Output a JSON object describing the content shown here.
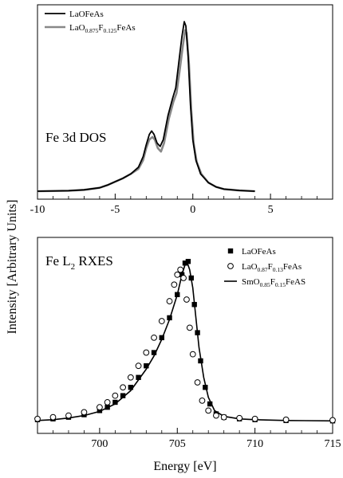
{
  "chart_data": [
    {
      "type": "line",
      "panel_label": "Fe 3d DOS",
      "xlim": [
        -10,
        9
      ],
      "ylim": [
        0,
        1.0
      ],
      "xticks": [
        -10,
        -5,
        0,
        5
      ],
      "legend_position": "top-left",
      "series": [
        {
          "name": "LaOFeAs",
          "color": "#000000",
          "points": [
            [
              -10,
              0
            ],
            [
              -8,
              0.003
            ],
            [
              -7,
              0.008
            ],
            [
              -6,
              0.02
            ],
            [
              -5.5,
              0.035
            ],
            [
              -5,
              0.055
            ],
            [
              -4.5,
              0.075
            ],
            [
              -4,
              0.1
            ],
            [
              -3.5,
              0.14
            ],
            [
              -3.2,
              0.2
            ],
            [
              -3,
              0.27
            ],
            [
              -2.8,
              0.33
            ],
            [
              -2.65,
              0.35
            ],
            [
              -2.5,
              0.33
            ],
            [
              -2.3,
              0.28
            ],
            [
              -2.1,
              0.26
            ],
            [
              -1.9,
              0.3
            ],
            [
              -1.6,
              0.44
            ],
            [
              -1.3,
              0.54
            ],
            [
              -1.1,
              0.6
            ],
            [
              -0.9,
              0.75
            ],
            [
              -0.7,
              0.9
            ],
            [
              -0.55,
              0.985
            ],
            [
              -0.45,
              0.96
            ],
            [
              -0.3,
              0.78
            ],
            [
              -0.15,
              0.5
            ],
            [
              0,
              0.3
            ],
            [
              0.2,
              0.18
            ],
            [
              0.5,
              0.1
            ],
            [
              1,
              0.05
            ],
            [
              1.5,
              0.025
            ],
            [
              2,
              0.012
            ],
            [
              3,
              0.004
            ],
            [
              4,
              0
            ]
          ]
        },
        {
          "name": "LaO0.875F0.125FeAs",
          "color": "#888888",
          "points": [
            [
              -10,
              0
            ],
            [
              -8,
              0.003
            ],
            [
              -7,
              0.008
            ],
            [
              -6,
              0.02
            ],
            [
              -5.5,
              0.035
            ],
            [
              -5,
              0.055
            ],
            [
              -4.5,
              0.075
            ],
            [
              -4,
              0.1
            ],
            [
              -3.5,
              0.13
            ],
            [
              -3.2,
              0.18
            ],
            [
              -3,
              0.25
            ],
            [
              -2.8,
              0.3
            ],
            [
              -2.6,
              0.315
            ],
            [
              -2.45,
              0.3
            ],
            [
              -2.25,
              0.25
            ],
            [
              -2.05,
              0.23
            ],
            [
              -1.85,
              0.28
            ],
            [
              -1.55,
              0.42
            ],
            [
              -1.25,
              0.52
            ],
            [
              -1.05,
              0.57
            ],
            [
              -0.85,
              0.7
            ],
            [
              -0.65,
              0.84
            ],
            [
              -0.5,
              0.935
            ],
            [
              -0.4,
              0.92
            ],
            [
              -0.25,
              0.74
            ],
            [
              -0.1,
              0.47
            ],
            [
              0.05,
              0.28
            ],
            [
              0.25,
              0.17
            ],
            [
              0.55,
              0.1
            ],
            [
              1,
              0.05
            ],
            [
              1.5,
              0.025
            ],
            [
              2,
              0.012
            ],
            [
              3,
              0.004
            ],
            [
              4,
              0
            ]
          ]
        }
      ],
      "legend": [
        {
          "parts": [
            {
              "text": "LaOFeAs",
              "sub": false
            }
          ]
        },
        {
          "parts": [
            {
              "text": "LaO",
              "sub": false
            },
            {
              "text": "0.875",
              "sub": true
            },
            {
              "text": "F",
              "sub": false
            },
            {
              "text": "0.125",
              "sub": true
            },
            {
              "text": "FeAs",
              "sub": false
            }
          ]
        }
      ]
    },
    {
      "type": "scatter",
      "panel_label_main": "Fe L",
      "panel_label_sub": "2",
      "panel_label_tail": " RXES",
      "xlim": [
        696,
        715
      ],
      "ylim": [
        0,
        1.0
      ],
      "xticks": [
        700,
        705,
        710,
        715
      ],
      "xlabel": "Energy [eV]",
      "legend_position": "top-right",
      "series": [
        {
          "name": "LaOFeAs",
          "marker": "filled-square",
          "points": [
            [
              696,
              0.025
            ],
            [
              697,
              0.03
            ],
            [
              698,
              0.04
            ],
            [
              699,
              0.055
            ],
            [
              700,
              0.08
            ],
            [
              700.5,
              0.1
            ],
            [
              701,
              0.13
            ],
            [
              701.5,
              0.17
            ],
            [
              702,
              0.22
            ],
            [
              702.5,
              0.28
            ],
            [
              703,
              0.35
            ],
            [
              703.5,
              0.43
            ],
            [
              704,
              0.52
            ],
            [
              704.5,
              0.64
            ],
            [
              705,
              0.78
            ],
            [
              705.3,
              0.9
            ],
            [
              705.5,
              0.97
            ],
            [
              705.7,
              0.98
            ],
            [
              705.9,
              0.88
            ],
            [
              706.1,
              0.72
            ],
            [
              706.3,
              0.55
            ],
            [
              706.5,
              0.38
            ],
            [
              706.8,
              0.22
            ],
            [
              707.1,
              0.12
            ],
            [
              707.5,
              0.06
            ],
            [
              708,
              0.04
            ],
            [
              709,
              0.03
            ],
            [
              710,
              0.025
            ],
            [
              712,
              0.02
            ],
            [
              715,
              0.018
            ]
          ]
        },
        {
          "name": "LaO0.87F0.13FeAs",
          "marker": "open-circle",
          "points": [
            [
              696,
              0.03
            ],
            [
              697,
              0.04
            ],
            [
              698,
              0.05
            ],
            [
              699,
              0.07
            ],
            [
              700,
              0.1
            ],
            [
              700.5,
              0.13
            ],
            [
              701,
              0.17
            ],
            [
              701.5,
              0.22
            ],
            [
              702,
              0.28
            ],
            [
              702.5,
              0.35
            ],
            [
              703,
              0.43
            ],
            [
              703.5,
              0.52
            ],
            [
              704,
              0.62
            ],
            [
              704.5,
              0.74
            ],
            [
              704.8,
              0.84
            ],
            [
              705,
              0.9
            ],
            [
              705.2,
              0.93
            ],
            [
              705.4,
              0.88
            ],
            [
              705.6,
              0.75
            ],
            [
              705.8,
              0.58
            ],
            [
              706,
              0.42
            ],
            [
              706.3,
              0.25
            ],
            [
              706.6,
              0.14
            ],
            [
              707,
              0.08
            ],
            [
              707.5,
              0.05
            ],
            [
              708,
              0.04
            ],
            [
              709,
              0.035
            ],
            [
              710,
              0.03
            ],
            [
              712,
              0.025
            ],
            [
              715,
              0.022
            ]
          ]
        },
        {
          "name": "SmO0.85F0.15FeAS",
          "marker": "line",
          "points": [
            [
              696,
              0.02
            ],
            [
              697,
              0.025
            ],
            [
              698,
              0.035
            ],
            [
              699,
              0.05
            ],
            [
              700,
              0.075
            ],
            [
              701,
              0.12
            ],
            [
              702,
              0.2
            ],
            [
              703,
              0.33
            ],
            [
              703.5,
              0.41
            ],
            [
              704,
              0.51
            ],
            [
              704.5,
              0.63
            ],
            [
              705,
              0.78
            ],
            [
              705.3,
              0.9
            ],
            [
              705.5,
              0.96
            ],
            [
              705.65,
              0.97
            ],
            [
              705.8,
              0.93
            ],
            [
              706,
              0.82
            ],
            [
              706.2,
              0.64
            ],
            [
              706.4,
              0.46
            ],
            [
              706.7,
              0.28
            ],
            [
              707,
              0.16
            ],
            [
              707.4,
              0.08
            ],
            [
              708,
              0.045
            ],
            [
              709,
              0.03
            ],
            [
              710,
              0.025
            ],
            [
              712,
              0.02
            ],
            [
              715,
              0.018
            ]
          ]
        }
      ],
      "legend": [
        {
          "marker": "filled-square",
          "parts": [
            {
              "text": "LaOFeAs",
              "sub": false
            }
          ]
        },
        {
          "marker": "open-circle",
          "parts": [
            {
              "text": "LaO",
              "sub": false
            },
            {
              "text": "0.87",
              "sub": true
            },
            {
              "text": "F",
              "sub": false
            },
            {
              "text": "0.13",
              "sub": true
            },
            {
              "text": "FeAs",
              "sub": false
            }
          ]
        },
        {
          "marker": "line",
          "parts": [
            {
              "text": "SmO",
              "sub": false
            },
            {
              "text": "0.85",
              "sub": true
            },
            {
              "text": "F",
              "sub": false
            },
            {
              "text": "0.15",
              "sub": true
            },
            {
              "text": "FeAS",
              "sub": false
            }
          ]
        }
      ]
    }
  ],
  "ylabel": "Intensity [Arbitrary Units]"
}
